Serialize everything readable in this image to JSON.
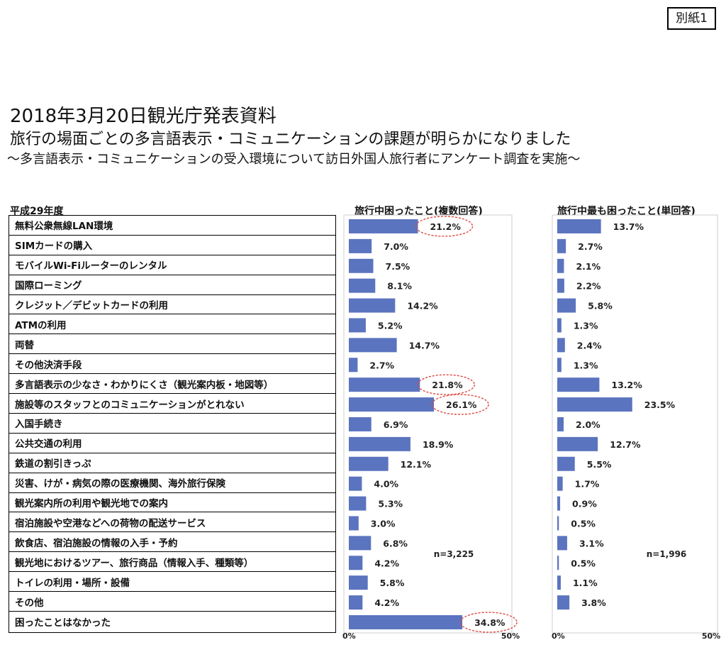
{
  "attachment_label": "別紙1",
  "headline": "2018年3月20日観光庁発表資料",
  "subtitle": "旅行の場面ごとの多言語表示・コミュニケーションの課題が明らかになりました",
  "subtitle2": "～多言語表示・コミュニケーションの受入環境について訪日外国人旅行者にアンケート調査を実施～",
  "year_label": "平成29年度",
  "chart_data": [
    {
      "type": "bar",
      "title": "旅行中困ったこと(複数回答)",
      "categories": [
        "無料公衆無線LAN環境",
        "SIMカードの購入",
        "モバイルWi-Fiルーターのレンタル",
        "国際ローミング",
        "クレジット／デビットカードの利用",
        "ATMの利用",
        "両替",
        "その他決済手段",
        "多言語表示の少なさ・わかりにくさ（観光案内板・地図等）",
        "施設等のスタッフとのコミュニケーションがとれない",
        "入国手続き",
        "公共交通の利用",
        "鉄道の割引きっぷ",
        "災害、けが・病気の際の医療機関、海外旅行保険",
        "観光案内所の利用や観光地での案内",
        "宿泊施設や空港などへの荷物の配送サービス",
        "飲食店、宿泊施設の情報の入手・予約",
        "観光地におけるツアー、旅行商品（情報入手、種類等）",
        "トイレの利用・場所・設備",
        "その他",
        "困ったことはなかった"
      ],
      "values": [
        21.2,
        7.0,
        7.5,
        8.1,
        14.2,
        5.2,
        14.7,
        2.7,
        21.8,
        26.1,
        6.9,
        18.9,
        12.1,
        4.0,
        5.3,
        3.0,
        6.8,
        4.2,
        5.8,
        4.2,
        34.8
      ],
      "value_labels": [
        "21.2%",
        "7.0%",
        "7.5%",
        "8.1%",
        "14.2%",
        "5.2%",
        "14.7%",
        "2.7%",
        "21.8%",
        "26.1%",
        "6.9%",
        "18.9%",
        "12.1%",
        "4.0%",
        "5.3%",
        "3.0%",
        "6.8%",
        "4.2%",
        "5.8%",
        "4.2%",
        "34.8%"
      ],
      "highlighted": [
        0,
        8,
        9,
        20
      ],
      "xlim": [
        0,
        50
      ],
      "axis_min_label": "0%",
      "axis_max_label": "50%",
      "n_label": "n=3,225",
      "bar_color": "#5b74bf",
      "highlight_color": "#e0463f"
    },
    {
      "type": "bar",
      "title": "旅行中最も困ったこと(単回答)",
      "categories": [
        "無料公衆無線LAN環境",
        "SIMカードの購入",
        "モバイルWi-Fiルーターのレンタル",
        "国際ローミング",
        "クレジット／デビットカードの利用",
        "ATMの利用",
        "両替",
        "その他決済手段",
        "多言語表示の少なさ・わかりにくさ（観光案内板・地図等）",
        "施設等のスタッフとのコミュニケーションがとれない",
        "入国手続き",
        "公共交通の利用",
        "鉄道の割引きっぷ",
        "災害、けが・病気の際の医療機関、海外旅行保険",
        "観光案内所の利用や観光地での案内",
        "宿泊施設や空港などへの荷物の配送サービス",
        "飲食店、宿泊施設の情報の入手・予約",
        "観光地におけるツアー、旅行商品（情報入手、種類等）",
        "トイレの利用・場所・設備",
        "その他",
        "困ったことはなかった"
      ],
      "values": [
        13.7,
        2.7,
        2.1,
        2.2,
        5.8,
        1.3,
        2.4,
        1.3,
        13.2,
        23.5,
        2.0,
        12.7,
        5.5,
        1.7,
        0.9,
        0.5,
        3.1,
        0.5,
        1.1,
        3.8,
        null
      ],
      "value_labels": [
        "13.7%",
        "2.7%",
        "2.1%",
        "2.2%",
        "5.8%",
        "1.3%",
        "2.4%",
        "1.3%",
        "13.2%",
        "23.5%",
        "2.0%",
        "12.7%",
        "5.5%",
        "1.7%",
        "0.9%",
        "0.5%",
        "3.1%",
        "0.5%",
        "1.1%",
        "3.8%",
        ""
      ],
      "xlim": [
        0,
        50
      ],
      "axis_min_label": "0%",
      "axis_max_label": "50%",
      "n_label": "n=1,996",
      "bar_color": "#5b74bf"
    }
  ]
}
